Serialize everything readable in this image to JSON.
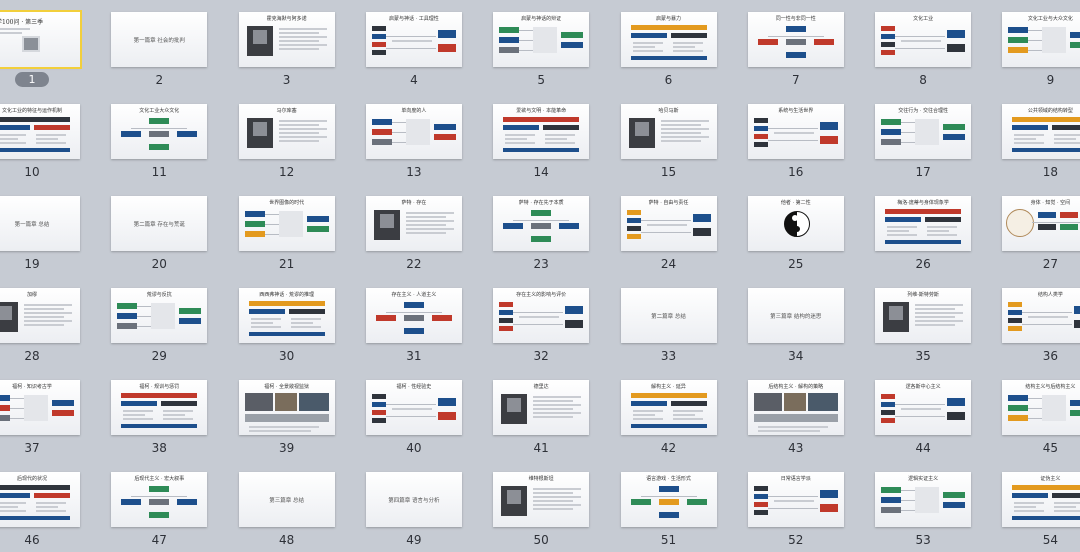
{
  "slides": [
    {
      "n": "1",
      "title": "哲学100问 · 第三季",
      "style": "cover",
      "selected": true
    },
    {
      "n": "2",
      "title": "第一篇章 社会的批判",
      "style": "section"
    },
    {
      "n": "3",
      "title": "霍克海默与阿多诺",
      "style": "photo"
    },
    {
      "n": "4",
      "title": "启蒙与神话 · 工具理性",
      "style": "diagram"
    },
    {
      "n": "5",
      "title": "启蒙与神话的辩证",
      "style": "diagram"
    },
    {
      "n": "6",
      "title": "启蒙与暴力",
      "style": "diagram"
    },
    {
      "n": "7",
      "title": "同一性与非同一性",
      "style": "diagram"
    },
    {
      "n": "8",
      "title": "文化工业",
      "style": "diagram"
    },
    {
      "n": "9",
      "title": "文化工业与大众文化",
      "style": "diagram"
    },
    {
      "n": "10",
      "title": "文化工业的特征与运作机制",
      "style": "diagram"
    },
    {
      "n": "11",
      "title": "文化工业大众文化",
      "style": "diagram"
    },
    {
      "n": "12",
      "title": "马尔库塞",
      "style": "photo"
    },
    {
      "n": "13",
      "title": "单向度的人",
      "style": "diagram"
    },
    {
      "n": "14",
      "title": "爱欲与文明 · 本能革命",
      "style": "diagram"
    },
    {
      "n": "15",
      "title": "哈贝马斯",
      "style": "photo"
    },
    {
      "n": "16",
      "title": "系统与生活世界",
      "style": "diagram"
    },
    {
      "n": "17",
      "title": "交往行为 · 交往合理性",
      "style": "diagram"
    },
    {
      "n": "18",
      "title": "公共领域的结构转型",
      "style": "diagram"
    },
    {
      "n": "19",
      "title": "第一篇章 总结",
      "style": "section"
    },
    {
      "n": "20",
      "title": "第二篇章 存在与荒诞",
      "style": "section"
    },
    {
      "n": "21",
      "title": "世界图像的时代",
      "style": "diagram"
    },
    {
      "n": "22",
      "title": "萨特 · 存在",
      "style": "photo"
    },
    {
      "n": "23",
      "title": "萨特 · 存在先于本质",
      "style": "diagram"
    },
    {
      "n": "24",
      "title": "萨特 · 自由与责任",
      "style": "diagram"
    },
    {
      "n": "25",
      "title": "他者 · 第二性",
      "style": "yinyang"
    },
    {
      "n": "26",
      "title": "梅洛-庞蒂与身体现象学",
      "style": "diagram"
    },
    {
      "n": "27",
      "title": "身体 · 知觉 · 空间",
      "style": "vitruvian"
    },
    {
      "n": "28",
      "title": "加缪",
      "style": "photo"
    },
    {
      "n": "29",
      "title": "荒谬与反抗",
      "style": "diagram"
    },
    {
      "n": "30",
      "title": "西西弗神话 · 荒谬的推理",
      "style": "diagram"
    },
    {
      "n": "31",
      "title": "存在主义 · 人道主义",
      "style": "diagram"
    },
    {
      "n": "32",
      "title": "存在主义的影响与评价",
      "style": "diagram"
    },
    {
      "n": "33",
      "title": "第二篇章 总结",
      "style": "section"
    },
    {
      "n": "34",
      "title": "第三篇章 结构的迷思",
      "style": "section"
    },
    {
      "n": "35",
      "title": "列维-斯特劳斯",
      "style": "photo"
    },
    {
      "n": "36",
      "title": "结构人类学",
      "style": "diagram"
    },
    {
      "n": "37",
      "title": "福柯 · 知识考古学",
      "style": "diagram"
    },
    {
      "n": "38",
      "title": "福柯 · 规训与惩罚",
      "style": "diagram"
    },
    {
      "n": "39",
      "title": "福柯 · 全景敞视监狱",
      "style": "photo-wide"
    },
    {
      "n": "40",
      "title": "福柯 · 性经验史",
      "style": "diagram"
    },
    {
      "n": "41",
      "title": "德里达",
      "style": "photo"
    },
    {
      "n": "42",
      "title": "解构主义 · 延异",
      "style": "diagram"
    },
    {
      "n": "43",
      "title": "后结构主义 · 解构的策略",
      "style": "photo-wide"
    },
    {
      "n": "44",
      "title": "逻各斯中心主义",
      "style": "diagram"
    },
    {
      "n": "45",
      "title": "结构主义与后结构主义",
      "style": "diagram"
    },
    {
      "n": "46",
      "title": "后现代的状况",
      "style": "diagram"
    },
    {
      "n": "47",
      "title": "后现代主义 · 宏大叙事",
      "style": "diagram"
    },
    {
      "n": "48",
      "title": "第三篇章 总结",
      "style": "section"
    },
    {
      "n": "49",
      "title": "第四篇章 语言与分析",
      "style": "section"
    },
    {
      "n": "50",
      "title": "维特根斯坦",
      "style": "photo"
    },
    {
      "n": "51",
      "title": "语言游戏 · 生活形式",
      "style": "diagram"
    },
    {
      "n": "52",
      "title": "日常语言学派",
      "style": "diagram"
    },
    {
      "n": "53",
      "title": "逻辑实证主义",
      "style": "diagram"
    },
    {
      "n": "54",
      "title": "证伪主义",
      "style": "diagram"
    }
  ],
  "palette": {
    "blue": "#1d4f8c",
    "red": "#c0392b",
    "green": "#2e8b57",
    "orange": "#e39a1f",
    "gray": "#6b717b",
    "dark": "#2f343c",
    "select": "#f2cf3b"
  },
  "icons": {
    "slide_thumbnail": "slide-thumbnail",
    "selection": "selection-pill"
  }
}
